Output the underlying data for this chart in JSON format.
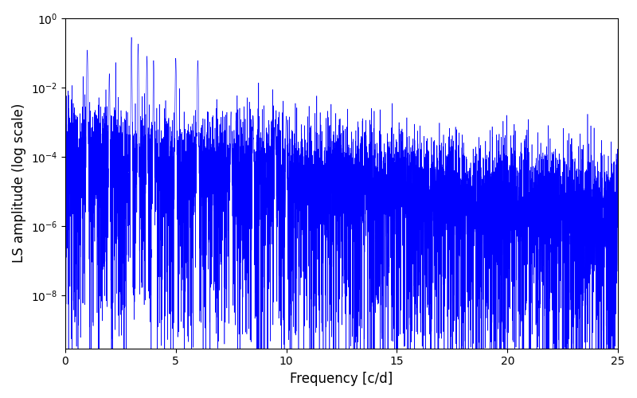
{
  "xlabel": "Frequency [c/d]",
  "ylabel": "LS amplitude (log scale)",
  "xlim": [
    0,
    25
  ],
  "ylim": [
    3e-10,
    1.0
  ],
  "line_color": "#0000ff",
  "background_color": "#ffffff",
  "figsize": [
    8.0,
    5.0
  ],
  "dpi": 100,
  "freq_min": 0.0,
  "freq_max": 25.0,
  "n_points": 8000,
  "seed": 123,
  "xticks": [
    0,
    5,
    10,
    15,
    20,
    25
  ]
}
